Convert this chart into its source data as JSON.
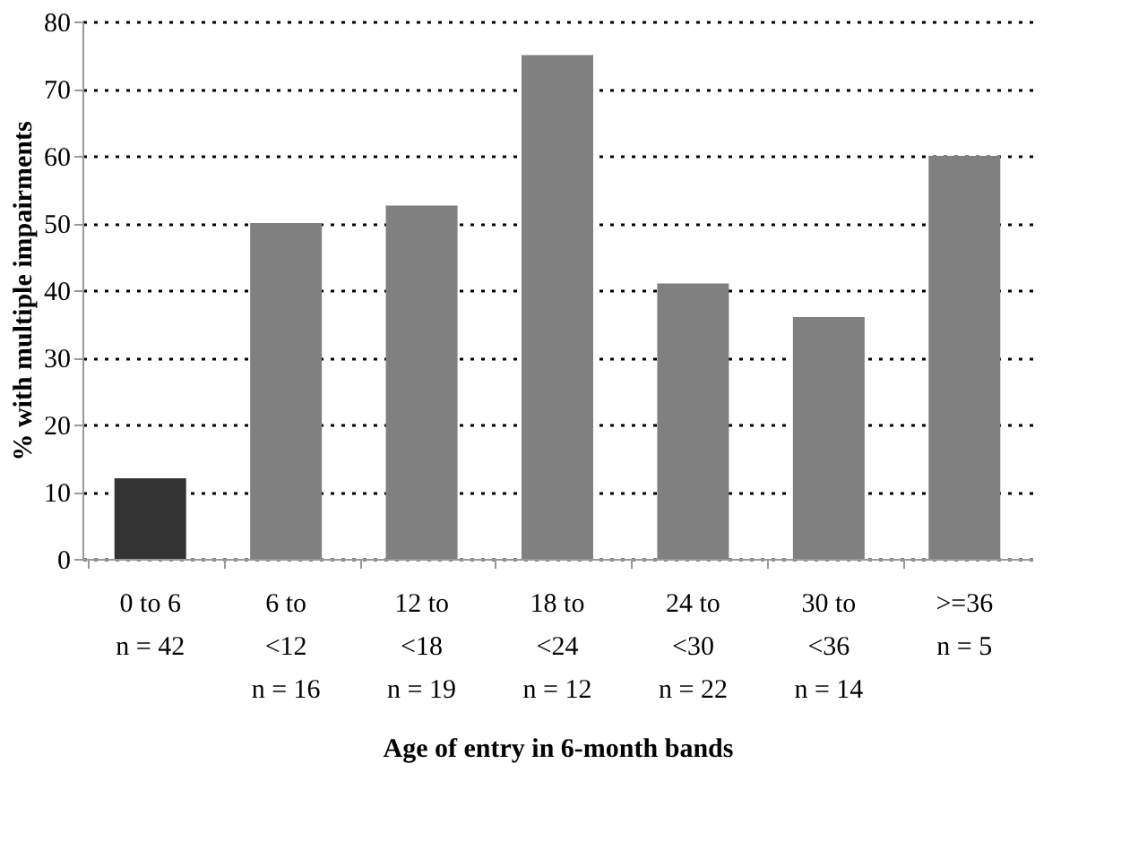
{
  "chart_data": {
    "type": "bar",
    "xlabel": "Age of entry in 6-month bands",
    "ylabel": "% with multiple impairments",
    "categories": [
      "0 to 6\n\nn = 42",
      "6 to\n<12\nn = 16",
      "12 to\n<18\nn = 19",
      "18 to\n<24\nn = 12",
      "24 to\n<30\nn = 22",
      "30 to\n<36\nn = 14",
      ">=36\n\nn = 5"
    ],
    "values": [
      12,
      50,
      52.6,
      75,
      41,
      36,
      60
    ],
    "colors": [
      "#333333",
      "#808080",
      "#808080",
      "#808080",
      "#808080",
      "#808080",
      "#808080"
    ],
    "ylim": [
      0,
      80
    ],
    "yticks": [
      0,
      10,
      20,
      30,
      40,
      50,
      60,
      70,
      80
    ],
    "grid": "y",
    "line_style": "dotted"
  }
}
